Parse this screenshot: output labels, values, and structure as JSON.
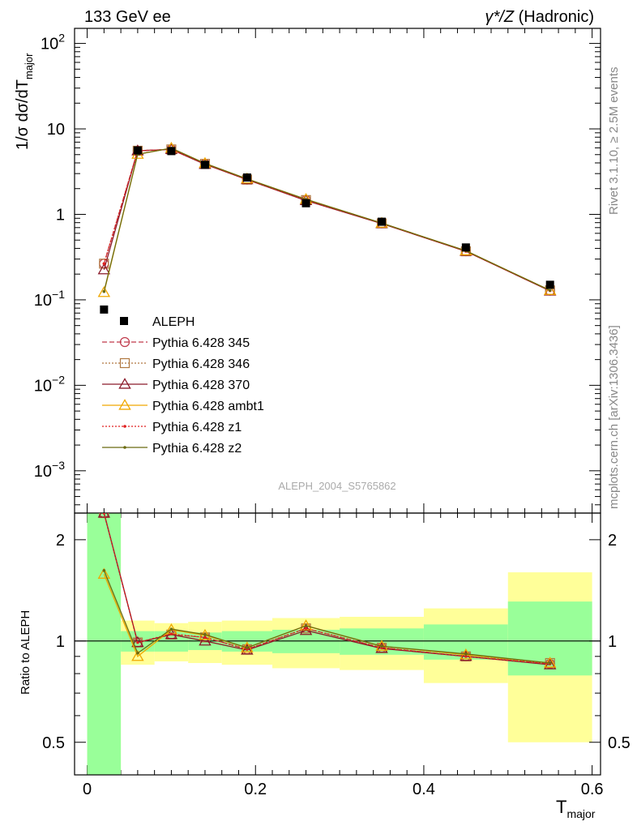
{
  "header": {
    "left_title": "133 GeV ee",
    "right_title_sup": "γ*/Z",
    "right_title_rest": " (Hadronic)"
  },
  "side_labels": {
    "rivet": "Rivet 3.1.10, ≥ 2.5M events",
    "mcplots": "mcplots.cern.ch [arXiv:1306.3436]"
  },
  "watermark": "ALEPH_2004_S5765862",
  "axes": {
    "y_main_label": "1/σ  dσ/dT",
    "y_main_label_sub": "major",
    "y_ratio_label": "Ratio to ALEPH",
    "x_label": "T",
    "x_label_sub": "major",
    "x_ticks": [
      "0",
      "0.2",
      "0.4",
      "0.6"
    ],
    "y_main_ticks": [
      {
        "base": "10",
        "exp": "2"
      },
      {
        "base": "10",
        "exp": ""
      },
      {
        "base": "1",
        "exp": ""
      },
      {
        "base": "10",
        "exp": "−1"
      },
      {
        "base": "10",
        "exp": "−2"
      },
      {
        "base": "10",
        "exp": "−3"
      }
    ],
    "y_ratio_ticks": [
      "2",
      "1",
      "0.5"
    ]
  },
  "legend": [
    {
      "label": "ALEPH"
    },
    {
      "label": "Pythia 6.428 345"
    },
    {
      "label": "Pythia 6.428 346"
    },
    {
      "label": "Pythia 6.428 370"
    },
    {
      "label": "Pythia 6.428 ambt1"
    },
    {
      "label": "Pythia 6.428 z1"
    },
    {
      "label": "Pythia 6.428 z2"
    }
  ],
  "chart_data": {
    "type": "line",
    "y_scale": "log",
    "xlim": [
      -0.015,
      0.61
    ],
    "ylim": [
      0.00032,
      150
    ],
    "ratio_ylim": [
      0.4,
      2.4
    ],
    "bins": [
      {
        "lo": 0.0,
        "hi": 0.04,
        "x": 0.02
      },
      {
        "lo": 0.04,
        "hi": 0.08,
        "x": 0.06
      },
      {
        "lo": 0.08,
        "hi": 0.12,
        "x": 0.1
      },
      {
        "lo": 0.12,
        "hi": 0.16,
        "x": 0.14
      },
      {
        "lo": 0.16,
        "hi": 0.22,
        "x": 0.19
      },
      {
        "lo": 0.22,
        "hi": 0.3,
        "x": 0.26
      },
      {
        "lo": 0.3,
        "hi": 0.4,
        "x": 0.35
      },
      {
        "lo": 0.4,
        "hi": 0.5,
        "x": 0.45
      },
      {
        "lo": 0.5,
        "hi": 0.6,
        "x": 0.55
      }
    ],
    "data": {
      "name": "ALEPH",
      "values": [
        0.077,
        5.6,
        5.5,
        3.8,
        2.7,
        1.35,
        0.82,
        0.41,
        0.15
      ],
      "ratio_band_inner": [
        [
          0.0,
          2.4
        ],
        [
          0.93,
          1.07
        ],
        [
          0.93,
          1.07
        ],
        [
          0.94,
          1.06
        ],
        [
          0.93,
          1.07
        ],
        [
          0.92,
          1.08
        ],
        [
          0.91,
          1.09
        ],
        [
          0.88,
          1.12
        ],
        [
          0.79,
          1.31
        ]
      ],
      "ratio_band_outer": [
        [
          0.0,
          2.4
        ],
        [
          0.85,
          1.15
        ],
        [
          0.87,
          1.13
        ],
        [
          0.86,
          1.14
        ],
        [
          0.85,
          1.15
        ],
        [
          0.83,
          1.17
        ],
        [
          0.82,
          1.18
        ],
        [
          0.75,
          1.25
        ],
        [
          0.5,
          1.6
        ]
      ]
    },
    "series": [
      {
        "name": "Pythia 6.428 345",
        "color": "#c0394b",
        "dash": "6,3",
        "marker": "circle",
        "values": [
          0.265,
          5.55,
          5.75,
          3.9,
          2.55,
          1.47,
          0.785,
          0.37,
          0.128
        ],
        "ratio": [
          3.4,
          0.99,
          1.045,
          1.025,
          0.945,
          1.09,
          0.955,
          0.9,
          0.855
        ]
      },
      {
        "name": "Pythia 6.428 346",
        "color": "#b07840",
        "dash": "2,2",
        "marker": "square",
        "values": [
          0.265,
          5.55,
          5.75,
          3.9,
          2.55,
          1.47,
          0.785,
          0.37,
          0.129
        ],
        "ratio": [
          3.4,
          0.99,
          1.045,
          1.025,
          0.945,
          1.09,
          0.955,
          0.9,
          0.86
        ]
      },
      {
        "name": "Pythia 6.428 370",
        "color": "#8b1a2a",
        "dash": "",
        "marker": "triangle",
        "values": [
          0.225,
          5.55,
          5.75,
          3.85,
          2.55,
          1.45,
          0.78,
          0.37,
          0.127
        ],
        "ratio": [
          2.95,
          0.99,
          1.045,
          1.0,
          0.94,
          1.075,
          0.95,
          0.9,
          0.85
        ]
      },
      {
        "name": "Pythia 6.428 ambt1",
        "color": "#f0a800",
        "dash": "",
        "marker": "triangle",
        "values": [
          0.122,
          5.05,
          5.95,
          3.95,
          2.6,
          1.5,
          0.79,
          0.375,
          0.129
        ],
        "ratio": [
          1.58,
          0.9,
          1.08,
          1.04,
          0.955,
          1.11,
          0.965,
          0.91,
          0.86
        ]
      },
      {
        "name": "Pythia 6.428 z1",
        "color": "#e02020",
        "dash": "2,2",
        "marker": "dot",
        "values": [
          0.265,
          5.55,
          5.75,
          3.9,
          2.55,
          1.47,
          0.785,
          0.37,
          0.128
        ],
        "ratio": [
          3.4,
          0.99,
          1.05,
          1.025,
          0.945,
          1.09,
          0.955,
          0.9,
          0.855
        ]
      },
      {
        "name": "Pythia 6.428 z2",
        "color": "#6b6b10",
        "dash": "",
        "marker": "dot",
        "values": [
          0.125,
          5.05,
          5.95,
          3.95,
          2.6,
          1.5,
          0.79,
          0.375,
          0.129
        ],
        "ratio": [
          1.62,
          0.92,
          1.085,
          1.045,
          0.955,
          1.11,
          0.965,
          0.915,
          0.86
        ]
      }
    ]
  }
}
